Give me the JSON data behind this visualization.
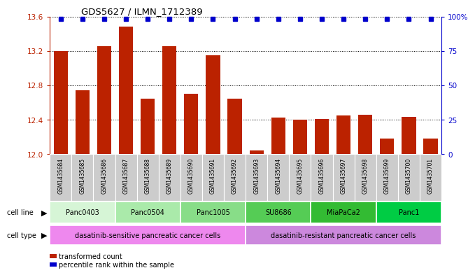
{
  "title": "GDS5627 / ILMN_1712389",
  "samples": [
    "GSM1435684",
    "GSM1435685",
    "GSM1435686",
    "GSM1435687",
    "GSM1435688",
    "GSM1435689",
    "GSM1435690",
    "GSM1435691",
    "GSM1435692",
    "GSM1435693",
    "GSM1435694",
    "GSM1435695",
    "GSM1435696",
    "GSM1435697",
    "GSM1435698",
    "GSM1435699",
    "GSM1435700",
    "GSM1435701"
  ],
  "bar_values": [
    13.2,
    12.74,
    13.25,
    13.48,
    12.64,
    13.25,
    12.7,
    13.15,
    12.64,
    12.04,
    12.42,
    12.4,
    12.41,
    12.45,
    12.46,
    12.18,
    12.43,
    12.18
  ],
  "cell_lines": [
    {
      "name": "Panc0403",
      "start": 0,
      "end": 2,
      "color": "#d6f5d6"
    },
    {
      "name": "Panc0504",
      "start": 3,
      "end": 5,
      "color": "#aaeaaa"
    },
    {
      "name": "Panc1005",
      "start": 6,
      "end": 8,
      "color": "#88dd88"
    },
    {
      "name": "SU8686",
      "start": 9,
      "end": 11,
      "color": "#55cc55"
    },
    {
      "name": "MiaPaCa2",
      "start": 12,
      "end": 14,
      "color": "#33bb33"
    },
    {
      "name": "Panc1",
      "start": 15,
      "end": 17,
      "color": "#00cc44"
    }
  ],
  "cell_type_sensitive": "dasatinib-sensitive pancreatic cancer cells",
  "cell_type_resistant": "dasatinib-resistant pancreatic cancer cells",
  "cell_type_sensitive_color": "#ee88ee",
  "cell_type_resistant_color": "#cc88dd",
  "ylim_low": 12.0,
  "ylim_high": 13.6,
  "yticks": [
    12.0,
    12.4,
    12.8,
    13.2,
    13.6
  ],
  "bar_color": "#bb2200",
  "percentile_color": "#0000cc",
  "right_yticks": [
    0,
    25,
    50,
    75,
    100
  ],
  "right_yticklabels": [
    "0",
    "25",
    "50",
    "75",
    "100%"
  ]
}
